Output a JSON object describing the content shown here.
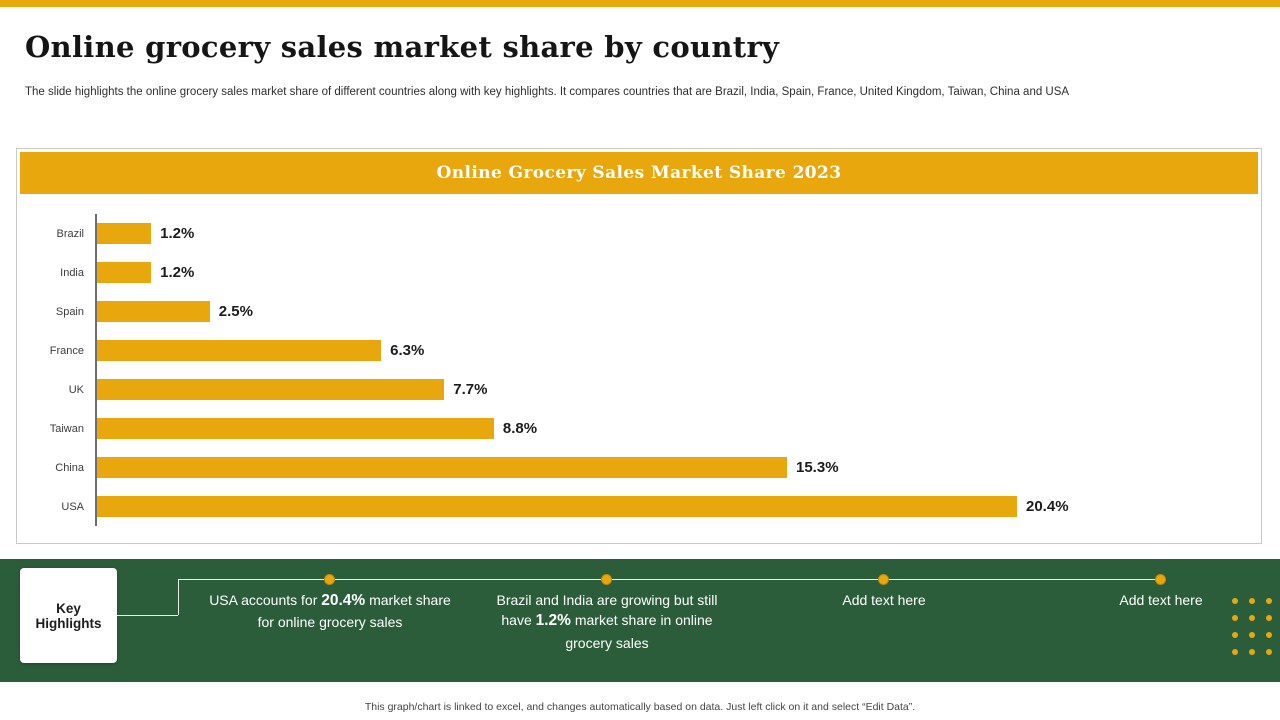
{
  "colors": {
    "accent_gold": "#E8A80D",
    "band_green": "#2B5D3B"
  },
  "header": {
    "title": "Online grocery sales market share by country",
    "subtitle": "The slide highlights the online grocery sales market share of different countries along with key highlights. It compares countries that are Brazil, India, Spain, France, United Kingdom, Taiwan, China and USA"
  },
  "chart_data": {
    "type": "bar",
    "orientation": "horizontal",
    "title": "Online Grocery Sales Market Share 2023",
    "categories": [
      "Brazil",
      "India",
      "Spain",
      "France",
      "UK",
      "Taiwan",
      "China",
      "USA"
    ],
    "values": [
      1.2,
      1.2,
      2.5,
      6.3,
      7.7,
      8.8,
      15.3,
      20.4
    ],
    "labels": [
      "1.2%",
      "1.2%",
      "2.5%",
      "6.3%",
      "7.7%",
      "8.8%",
      "15.3%",
      "20.4%"
    ],
    "unit": "%",
    "xlim": [
      0,
      25.5
    ],
    "grid": false,
    "legend": false,
    "bar_color": "#E8A80D"
  },
  "highlights": {
    "label": "Key Highlights",
    "items": [
      {
        "pre": "USA accounts for ",
        "bold": "20.4%",
        "post": " market share for online grocery sales"
      },
      {
        "pre": "Brazil and India are growing but still have ",
        "bold": "1.2%",
        "post": " market share in online grocery sales"
      },
      {
        "pre": "Add text here",
        "bold": "",
        "post": ""
      },
      {
        "pre": "Add text here",
        "bold": "",
        "post": ""
      }
    ]
  },
  "footer": {
    "note": "This graph/chart is linked to excel, and changes automatically based on data. Just left click on it and select “Edit Data”."
  }
}
